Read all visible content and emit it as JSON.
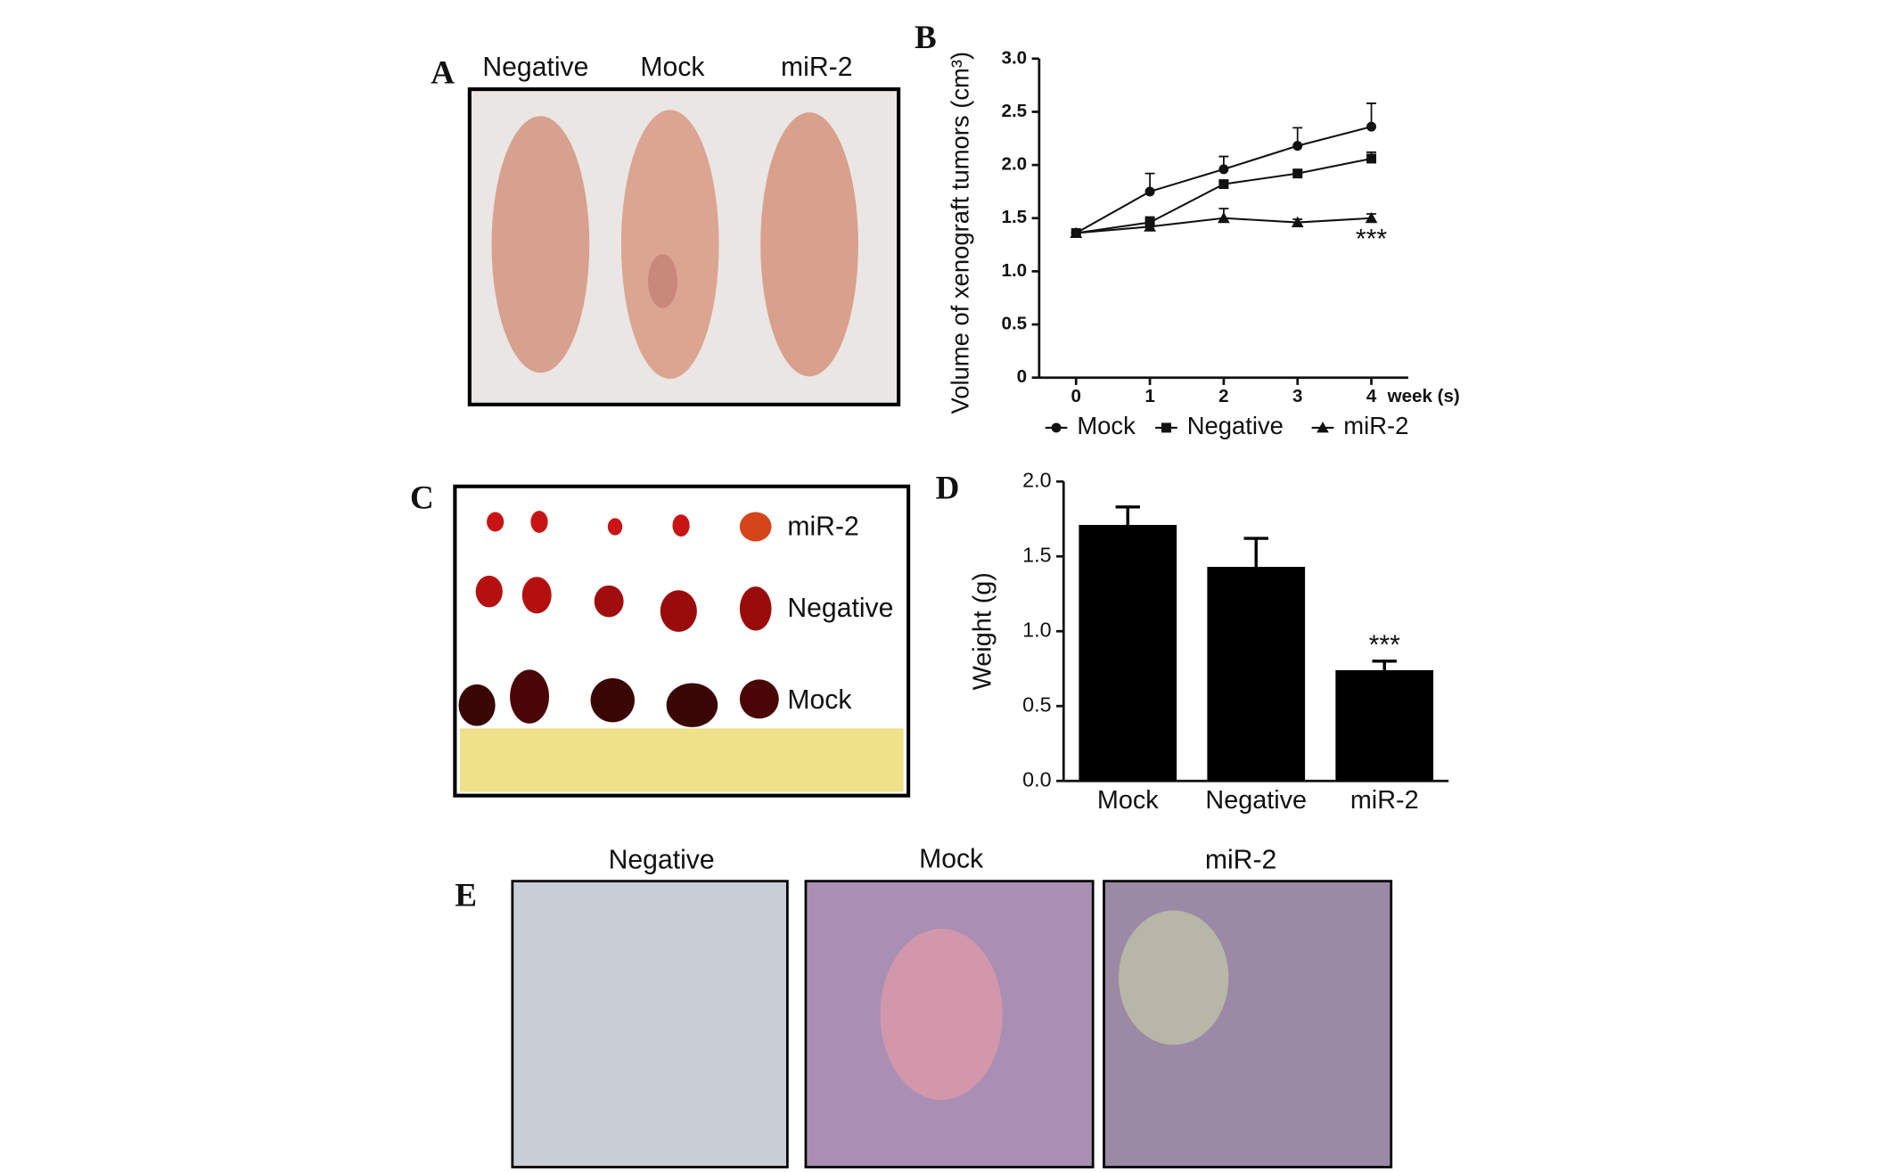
{
  "panel_labels": [
    "A",
    "B",
    "C",
    "D",
    "E"
  ],
  "panel_a": {
    "labels": [
      "Negative",
      "Mock",
      "miR-2"
    ]
  },
  "panel_c": {
    "labels": [
      "miR-2",
      "Negative",
      "Mock"
    ]
  },
  "panel_e": {
    "labels": [
      "Negative",
      "Mock",
      "miR-2"
    ]
  },
  "chart_data": [
    {
      "type": "line",
      "y_label": "Volume of xenograft tumors (cm³)",
      "x_label": "week (s)",
      "x": [
        0,
        1,
        2,
        3,
        4
      ],
      "xlim": [
        -0.5,
        4.5
      ],
      "xticks": [
        0,
        1,
        2,
        3,
        4
      ],
      "ylim": [
        0,
        3
      ],
      "yticks": [
        0,
        0.5,
        {
          "value": 1,
          "label": "1.0"
        },
        1.5,
        {
          "value": 2,
          "label": "2.0"
        },
        2.5,
        {
          "value": 3,
          "label": "3.0"
        }
      ],
      "series": [
        {
          "name": "Mock",
          "color": "#111111",
          "marker": "circle",
          "values": [
            1.36,
            1.75,
            1.96,
            2.18,
            2.36
          ],
          "errors": [
            0,
            0.17,
            0.12,
            0.17,
            0.22
          ]
        },
        {
          "name": "Negative",
          "color": "#111111",
          "marker": "square",
          "values": [
            1.36,
            1.46,
            1.82,
            1.92,
            2.06
          ],
          "errors": [
            0,
            0.05,
            0.03,
            0.03,
            0.06
          ]
        },
        {
          "name": "miR-2",
          "color": "#111111",
          "marker": "triangle",
          "values": [
            1.36,
            1.42,
            1.5,
            1.46,
            1.5
          ],
          "errors": [
            0,
            0.03,
            0.09,
            0.03,
            0.04
          ]
        }
      ],
      "annotation": "***",
      "legend": "bottom"
    },
    {
      "type": "bar",
      "y_label": "Weight (g)",
      "categories": [
        "Mock",
        "Negative",
        "miR-2"
      ],
      "values": [
        1.71,
        1.43,
        0.74
      ],
      "errors": [
        0.12,
        0.19,
        0.06
      ],
      "color": "#000000",
      "ylim": [
        0,
        2
      ],
      "yticks": [
        {
          "value": 0,
          "label": "0.0"
        },
        0.5,
        {
          "value": 1,
          "label": "1.0"
        },
        1.5,
        {
          "value": 2,
          "label": "2.0"
        }
      ],
      "annotation": "***"
    }
  ]
}
